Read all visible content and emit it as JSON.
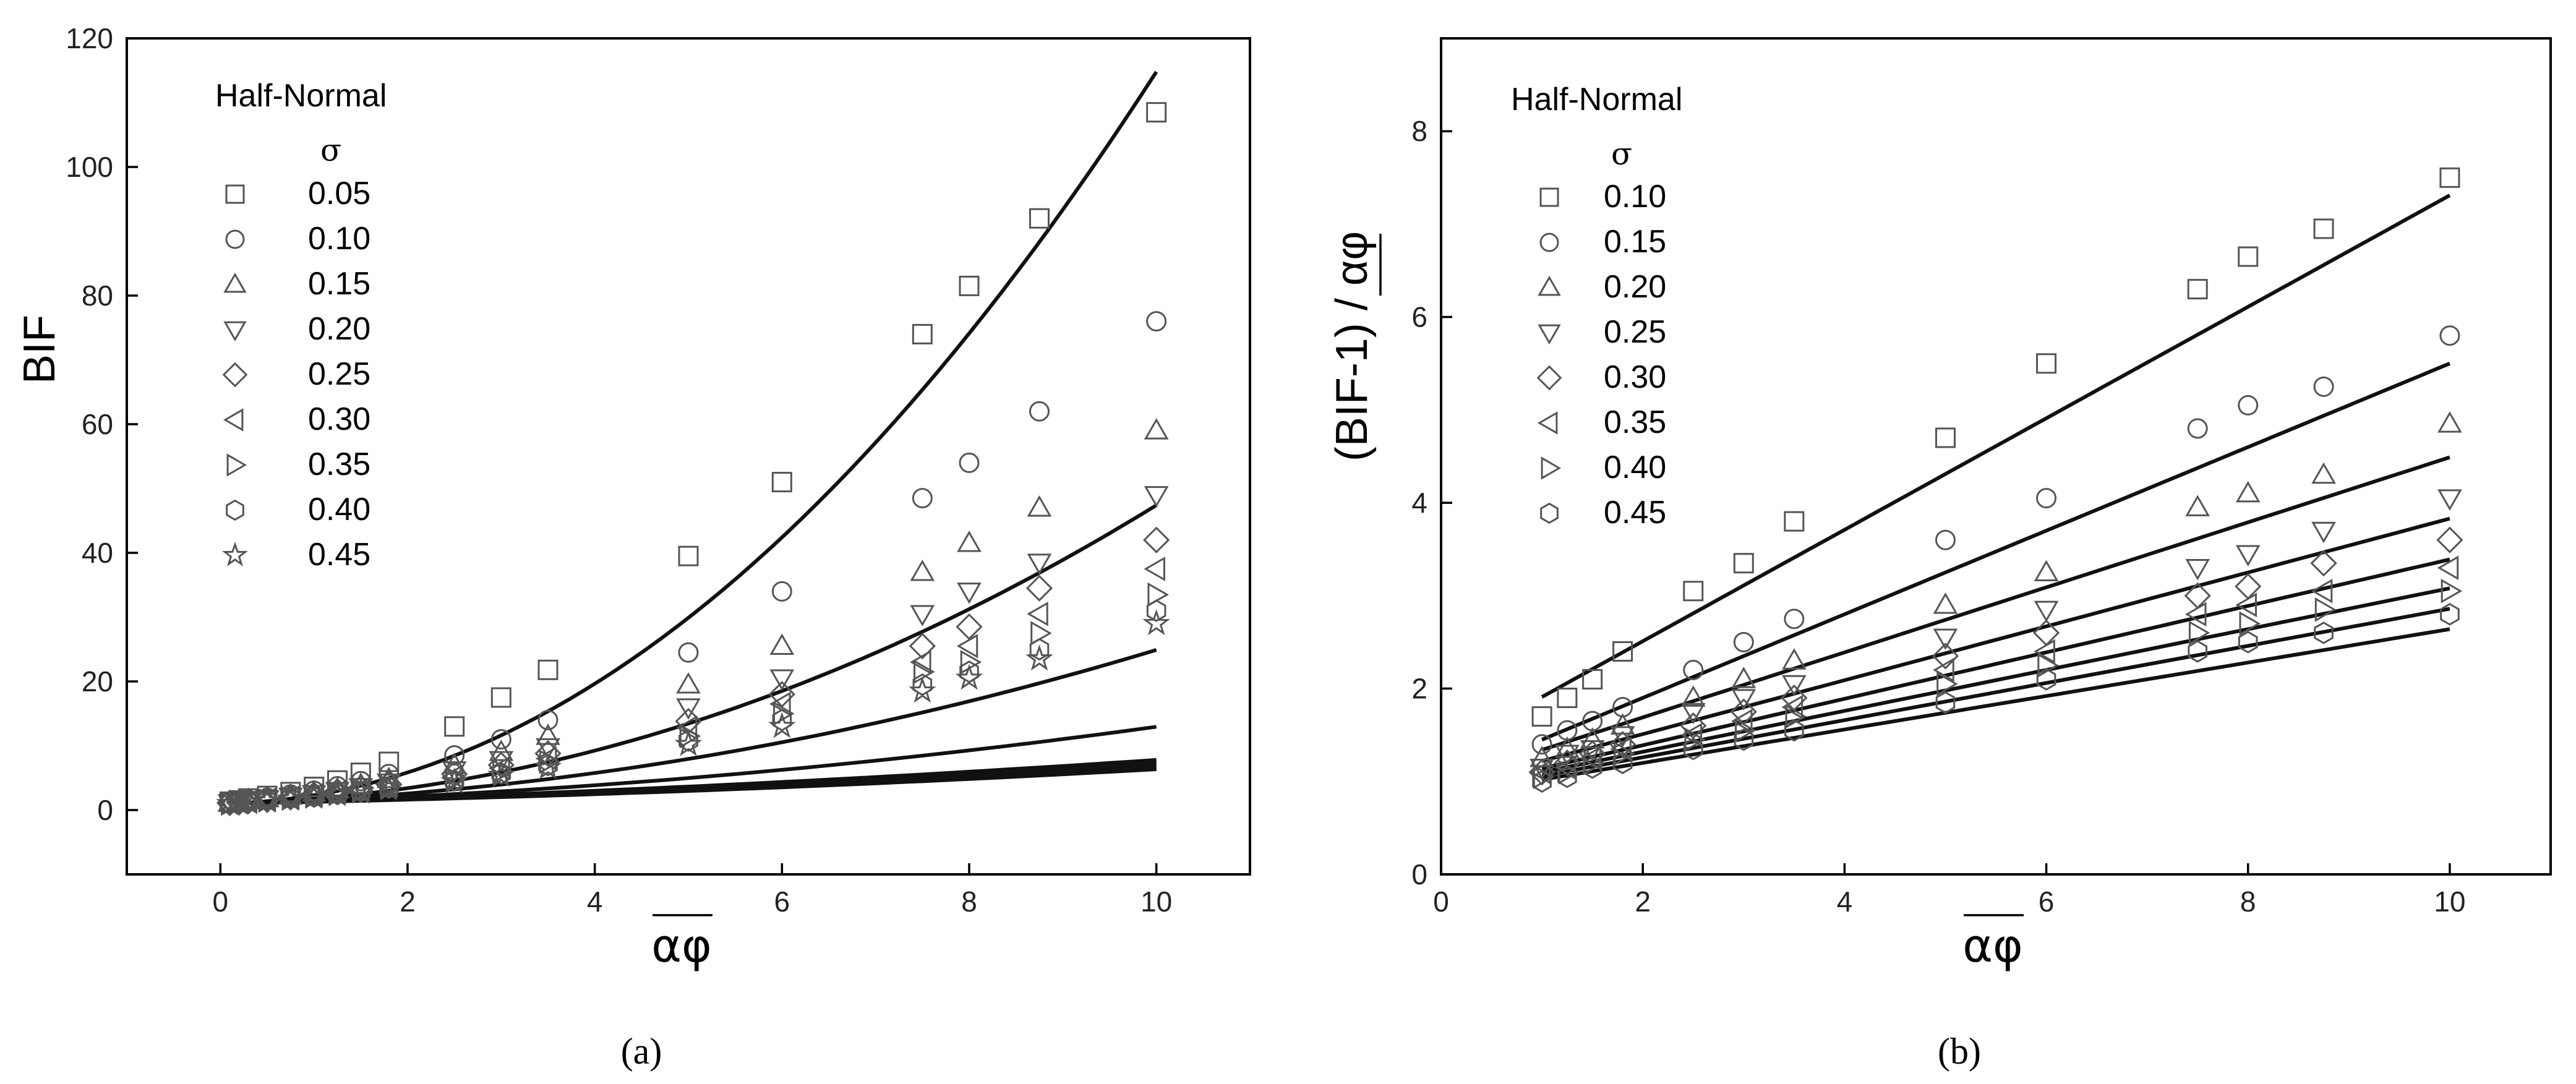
{
  "chart_data": [
    {
      "type": "scatter",
      "panel": "a",
      "caption": "(a)",
      "xlabel": "αφ",
      "ylabel": "BIF",
      "xlim": [
        -1,
        11
      ],
      "ylim": [
        -10,
        120
      ],
      "xticks": [
        0,
        2,
        4,
        6,
        8,
        10
      ],
      "yticks": [
        0,
        20,
        40,
        60,
        80,
        100,
        120
      ],
      "legend_title": "Half-Normal",
      "legend_symbol": "σ",
      "x": [
        0.1,
        0.2,
        0.3,
        0.5,
        0.75,
        1.0,
        1.25,
        1.5,
        1.8,
        2.5,
        3.0,
        3.5,
        5.0,
        6.0,
        7.5,
        8.0,
        8.75,
        10.0
      ],
      "series": [
        {
          "name": "0.05",
          "marker": "square",
          "values": [
            1.3,
            1.5,
            1.8,
            2.2,
            2.8,
            3.6,
            4.6,
            5.8,
            7.5,
            13.0,
            17.5,
            21.8,
            39.5,
            51.0,
            74.0,
            81.5,
            92.0,
            108.5
          ],
          "fit": [
            0.18,
            1.12
          ]
        },
        {
          "name": "0.10",
          "marker": "circle",
          "values": [
            1.2,
            1.4,
            1.6,
            1.9,
            2.4,
            3.0,
            3.7,
            4.5,
            5.6,
            8.5,
            11.0,
            14.0,
            24.5,
            34.0,
            48.5,
            54.0,
            62.0,
            76.0
          ],
          "fit": [
            0.34,
            0.43
          ]
        },
        {
          "name": "0.15",
          "marker": "triangle-up",
          "values": [
            1.1,
            1.3,
            1.5,
            1.8,
            2.2,
            2.7,
            3.2,
            3.9,
            4.8,
            7.0,
            9.0,
            11.5,
            19.5,
            25.5,
            37.0,
            41.5,
            47.0,
            59.0
          ],
          "fit": [
            0.39,
            0.2
          ]
        },
        {
          "name": "0.20",
          "marker": "triangle-down",
          "values": [
            1.1,
            1.3,
            1.4,
            1.7,
            2.1,
            2.5,
            3.0,
            3.6,
            4.3,
            6.2,
            7.8,
            9.8,
            16.0,
            20.5,
            30.5,
            34.0,
            38.5,
            49.0
          ],
          "fit": [
            0.395,
            0.08
          ]
        },
        {
          "name": "0.25",
          "marker": "diamond",
          "values": [
            1.1,
            1.2,
            1.4,
            1.6,
            2.0,
            2.4,
            2.9,
            3.4,
            4.0,
            5.6,
            7.0,
            8.8,
            13.8,
            18.0,
            25.5,
            28.5,
            34.5,
            42.0
          ],
          "fit": [
            0.38,
            0.03
          ]
        },
        {
          "name": "0.30",
          "marker": "triangle-left",
          "values": [
            1.1,
            1.2,
            1.3,
            1.6,
            1.9,
            2.3,
            2.8,
            3.2,
            3.8,
            5.2,
            6.5,
            8.0,
            12.8,
            16.5,
            23.0,
            25.5,
            30.5,
            37.5
          ],
          "fit": [
            0.335,
            0.031
          ]
        },
        {
          "name": "0.35",
          "marker": "triangle-right",
          "values": [
            1.0,
            1.2,
            1.3,
            1.5,
            1.8,
            2.2,
            2.6,
            3.0,
            3.6,
            4.9,
            6.0,
            7.5,
            11.5,
            15.0,
            21.5,
            23.0,
            27.5,
            33.5
          ],
          "fit": [
            0.297,
            0.032
          ]
        },
        {
          "name": "0.40",
          "marker": "hexagon",
          "values": [
            1.0,
            1.1,
            1.3,
            1.5,
            1.8,
            2.1,
            2.5,
            2.9,
            3.5,
            4.6,
            5.7,
            7.0,
            10.8,
            14.0,
            19.5,
            21.5,
            25.0,
            31.0
          ],
          "fit": [
            0.27,
            0.03
          ]
        },
        {
          "name": "0.45",
          "marker": "star",
          "values": [
            1.0,
            1.1,
            1.2,
            1.4,
            1.7,
            2.0,
            2.4,
            2.8,
            3.3,
            4.4,
            5.4,
            6.6,
            10.2,
            13.0,
            18.5,
            20.5,
            23.5,
            29.0
          ],
          "fit": [
            0.255,
            0.028
          ]
        }
      ]
    },
    {
      "type": "scatter",
      "panel": "b",
      "caption": "(b)",
      "xlabel": "αφ",
      "ylabel": "(BIF-1) / αφ",
      "xlim": [
        0,
        11
      ],
      "ylim": [
        0,
        9
      ],
      "xticks": [
        0,
        2,
        4,
        6,
        8,
        10
      ],
      "yticks": [
        0,
        2,
        4,
        6,
        8
      ],
      "legend_title": "Half-Normal",
      "legend_symbol": "σ",
      "x": [
        1.0,
        1.25,
        1.5,
        1.8,
        2.5,
        3.0,
        3.5,
        5.0,
        6.0,
        7.5,
        8.0,
        8.75,
        10.0
      ],
      "series": [
        {
          "name": "0.10",
          "marker": "square",
          "values": [
            1.7,
            1.9,
            2.1,
            2.4,
            3.05,
            3.35,
            3.8,
            4.7,
            5.5,
            6.3,
            6.65,
            6.95,
            7.5
          ],
          "fit": [
            1.91,
            0.6
          ]
        },
        {
          "name": "0.15",
          "marker": "circle",
          "values": [
            1.4,
            1.55,
            1.65,
            1.8,
            2.2,
            2.5,
            2.75,
            3.6,
            4.05,
            4.8,
            5.05,
            5.25,
            5.8
          ],
          "fit": [
            1.45,
            0.45
          ]
        },
        {
          "name": "0.20",
          "marker": "triangle-up",
          "values": [
            1.25,
            1.35,
            1.45,
            1.6,
            1.9,
            2.1,
            2.3,
            2.9,
            3.25,
            3.95,
            4.1,
            4.3,
            4.85
          ],
          "fit": [
            1.34,
            0.35
          ]
        },
        {
          "name": "0.25",
          "marker": "triangle-down",
          "values": [
            1.15,
            1.3,
            1.35,
            1.5,
            1.75,
            1.9,
            2.05,
            2.55,
            2.85,
            3.3,
            3.45,
            3.7,
            4.05
          ],
          "fit": [
            1.22,
            0.29
          ]
        },
        {
          "name": "0.30",
          "marker": "diamond",
          "values": [
            1.1,
            1.2,
            1.3,
            1.4,
            1.6,
            1.75,
            1.9,
            2.35,
            2.6,
            3.0,
            3.1,
            3.35,
            3.6
          ],
          "fit": [
            1.14,
            0.25
          ]
        },
        {
          "name": "0.35",
          "marker": "triangle-left",
          "values": [
            1.1,
            1.15,
            1.25,
            1.35,
            1.5,
            1.65,
            1.8,
            2.2,
            2.4,
            2.8,
            2.9,
            3.05,
            3.3
          ],
          "fit": [
            1.1,
            0.22
          ]
        },
        {
          "name": "0.40",
          "marker": "triangle-right",
          "values": [
            1.05,
            1.1,
            1.2,
            1.3,
            1.45,
            1.55,
            1.7,
            2.05,
            2.25,
            2.6,
            2.7,
            2.85,
            3.05
          ],
          "fit": [
            1.06,
            0.2
          ]
        },
        {
          "name": "0.45",
          "marker": "hexagon",
          "values": [
            1.0,
            1.05,
            1.15,
            1.2,
            1.35,
            1.45,
            1.55,
            1.85,
            2.1,
            2.4,
            2.5,
            2.6,
            2.8
          ],
          "fit": [
            1.02,
            0.18
          ]
        }
      ]
    }
  ]
}
